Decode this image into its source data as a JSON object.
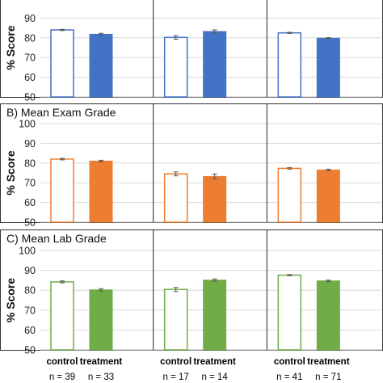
{
  "chart_data": [
    {
      "type": "bar",
      "title": "",
      "ylabel": "% Score",
      "ylim": [
        50,
        100
      ],
      "yticks": [
        50,
        60,
        70,
        80,
        90,
        100
      ],
      "groups": 3,
      "categories": [
        "control",
        "treatment"
      ],
      "color": "#4472c4",
      "values": [
        [
          84,
          81.8
        ],
        [
          80.2,
          83.2
        ],
        [
          82.5,
          79.8
        ]
      ],
      "errors": [
        [
          0.3,
          0.5
        ],
        [
          0.9,
          0.8
        ],
        [
          0.3,
          0.3
        ]
      ],
      "grid": true,
      "legend": "none"
    },
    {
      "type": "bar",
      "title": "B) Mean Exam Grade",
      "ylabel": "% Score",
      "ylim": [
        50,
        100
      ],
      "yticks": [
        50,
        60,
        70,
        80,
        90,
        100
      ],
      "groups": 3,
      "categories": [
        "control",
        "treatment"
      ],
      "color": "#ed7d31",
      "values": [
        [
          82,
          81
        ],
        [
          74.5,
          73.2
        ],
        [
          77.3,
          76.5
        ]
      ],
      "errors": [
        [
          0.4,
          0.4
        ],
        [
          1.0,
          1.2
        ],
        [
          0.4,
          0.4
        ]
      ],
      "grid": true,
      "legend": "none"
    },
    {
      "type": "bar",
      "title": "C) Mean Lab Grade",
      "ylabel": "% Score",
      "ylim": [
        50,
        100
      ],
      "yticks": [
        50,
        60,
        70,
        80,
        90,
        100
      ],
      "groups": 3,
      "categories": [
        "control",
        "treatment"
      ],
      "color": "#70ad47",
      "values": [
        [
          84.2,
          80.2
        ],
        [
          80.4,
          85.1
        ],
        [
          87.6,
          84.7
        ]
      ],
      "errors": [
        [
          0.5,
          0.6
        ],
        [
          1.0,
          0.6
        ],
        [
          0.3,
          0.4
        ]
      ],
      "grid": true,
      "legend": "none"
    }
  ],
  "x_labels": {
    "control": "control",
    "treatment": "treatment"
  },
  "n_counts": [
    [
      "n = 39",
      "n = 33"
    ],
    [
      "n = 17",
      "n = 14"
    ],
    [
      "n = 41",
      "n = 71"
    ]
  ]
}
